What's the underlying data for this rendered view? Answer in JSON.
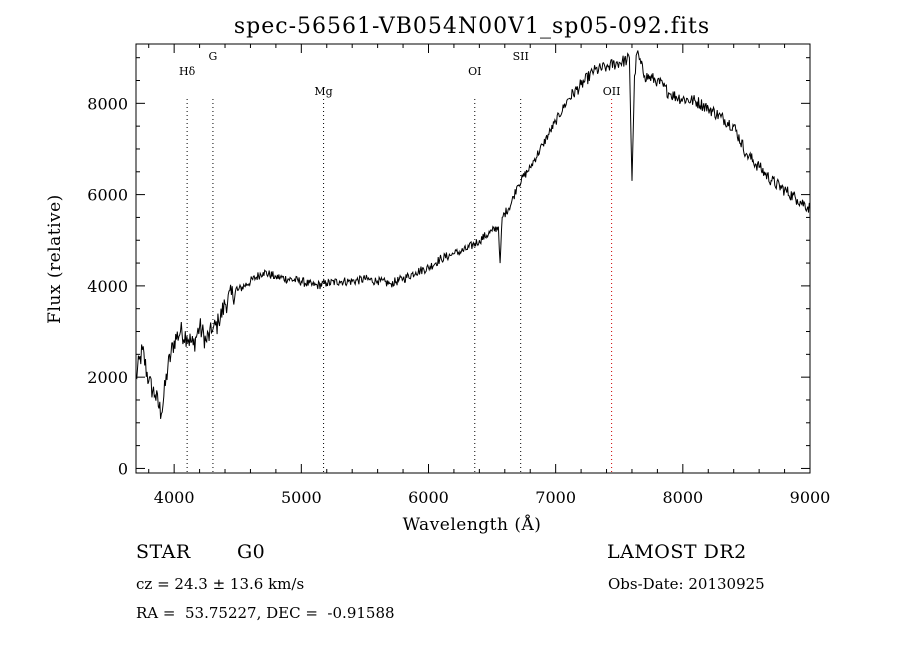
{
  "chart_data": {
    "type": "line",
    "title": "spec-56561-VB054N00V1_sp05-092.fits",
    "xlabel": "Wavelength (Å)",
    "ylabel": "Flux (relative)",
    "xlim": [
      3700,
      9000
    ],
    "ylim": [
      -100,
      9300
    ],
    "x_ticks": [
      4000,
      5000,
      6000,
      7000,
      8000,
      9000
    ],
    "y_ticks": [
      0,
      2000,
      4000,
      6000,
      8000
    ],
    "x_tick_labels": [
      "4000",
      "5000",
      "6000",
      "7000",
      "8000",
      "9000"
    ],
    "y_tick_labels": [
      "0",
      "2000",
      "4000",
      "6000",
      "8000"
    ],
    "grid": false,
    "line_color": "#000000",
    "series": [
      {
        "x": [
          3700,
          3750,
          3800,
          3850,
          3900,
          3950,
          4000,
          4050,
          4100,
          4150,
          4200,
          4250,
          4300,
          4350,
          4400,
          4450,
          4500,
          4600,
          4700,
          4800,
          4900,
          5000,
          5100,
          5200,
          5300,
          5400,
          5500,
          5600,
          5700,
          5800,
          5900,
          6000,
          6100,
          6200,
          6300,
          6400,
          6500,
          6550,
          6563,
          6580,
          6650,
          6700,
          6800,
          6900,
          7000,
          7100,
          7200,
          7300,
          7400,
          7500,
          7560,
          7580,
          7600,
          7620,
          7640,
          7700,
          7800,
          7900,
          8000,
          8100,
          8200,
          8300,
          8400,
          8500,
          8600,
          8700,
          8800,
          8900,
          9000
        ],
        "y": [
          2000,
          2600,
          1900,
          1600,
          1200,
          2200,
          2800,
          3000,
          2900,
          2700,
          3100,
          2800,
          3000,
          3200,
          3600,
          3800,
          3900,
          4100,
          4300,
          4200,
          4150,
          4100,
          4000,
          4050,
          4100,
          4100,
          4150,
          4100,
          4050,
          4150,
          4300,
          4400,
          4600,
          4700,
          4800,
          5000,
          5200,
          5300,
          4500,
          5500,
          5800,
          6200,
          6600,
          7100,
          7600,
          8100,
          8400,
          8700,
          8800,
          8900,
          8950,
          9000,
          6300,
          8600,
          9100,
          8600,
          8500,
          8200,
          8100,
          8050,
          7900,
          7700,
          7500,
          6900,
          6600,
          6300,
          6100,
          5900,
          5700
        ]
      }
    ],
    "line_markers": [
      {
        "wavelength": 4102,
        "label": "Hδ",
        "color": "#000000"
      },
      {
        "wavelength": 4305,
        "label": "G",
        "color": "#000000"
      },
      {
        "wavelength": 5175,
        "label": "Mg",
        "color": "#000000"
      },
      {
        "wavelength": 6364,
        "label": "OI",
        "color": "#000000"
      },
      {
        "wavelength": 6725,
        "label": "SII",
        "color": "#000000"
      },
      {
        "wavelength": 7440,
        "label": "OII",
        "color": "#cc0000"
      }
    ]
  },
  "footer": {
    "object_class": "STAR",
    "subclass": "G0",
    "survey": "LAMOST DR2",
    "cz": "cz = 24.3 ± 13.6 km/s",
    "obs_date": "Obs-Date: 20130925",
    "coords": "RA =  53.75227, DEC =  -0.91588"
  }
}
